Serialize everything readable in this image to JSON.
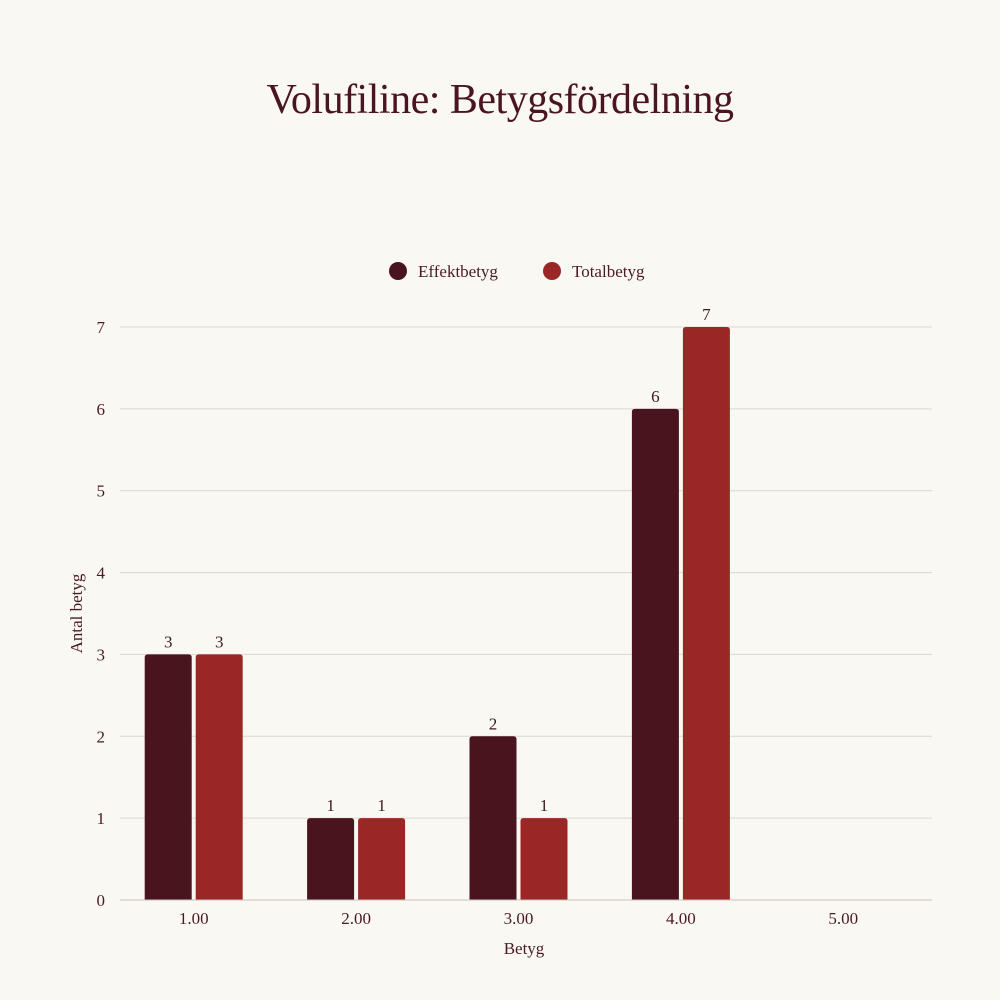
{
  "chart_data": {
    "type": "bar",
    "title": "Volufiline: Betygsfördelning",
    "xlabel": "Betyg",
    "ylabel": "Antal betyg",
    "categories": [
      "1.00",
      "2.00",
      "3.00",
      "4.00",
      "5.00"
    ],
    "series": [
      {
        "name": "Effektbetyg",
        "values": [
          3,
          1,
          2,
          6,
          0
        ],
        "color": "#4a141e"
      },
      {
        "name": "Totalbetyg",
        "values": [
          3,
          1,
          1,
          7,
          0
        ],
        "color": "#9b2626"
      }
    ],
    "ylim": [
      0,
      7
    ],
    "yticks": [
      "0",
      "1",
      "2",
      "3",
      "4",
      "5",
      "6",
      "7"
    ],
    "grid": true,
    "legend_position": "top-center"
  }
}
